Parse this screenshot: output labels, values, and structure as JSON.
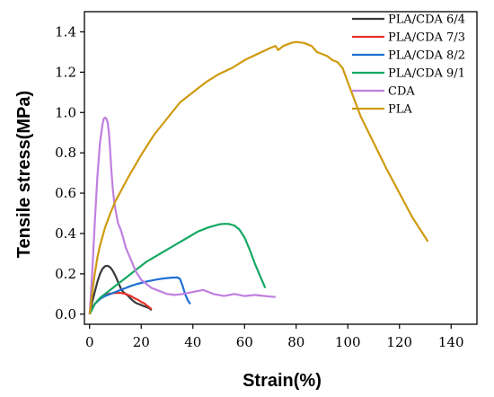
{
  "chart_data": {
    "type": "line",
    "title": "",
    "xlabel": "Strain(%)",
    "ylabel": "Tensile stress(MPa)",
    "xlim": [
      -2,
      150
    ],
    "ylim": [
      -0.05,
      1.5
    ],
    "xticks": [
      0,
      20,
      40,
      60,
      80,
      100,
      120,
      140
    ],
    "yticks": [
      0.0,
      0.2,
      0.4,
      0.6,
      0.8,
      1.0,
      1.2,
      1.4
    ],
    "ytick_labels": [
      "0.0",
      "0.2",
      "0.4",
      "0.6",
      "0.8",
      "1.0",
      "1.2",
      "1.4"
    ],
    "grid": false,
    "legend_position": "top-right",
    "series": [
      {
        "name": "PLA/CDA 6/4",
        "color": "#3a3a3a",
        "x": [
          0,
          1,
          2,
          3,
          4,
          5,
          6,
          7,
          8,
          9,
          10,
          11,
          12,
          13,
          14,
          15,
          16,
          17,
          18,
          19,
          20,
          21,
          22,
          23,
          24
        ],
        "y": [
          0,
          0.06,
          0.11,
          0.16,
          0.2,
          0.225,
          0.238,
          0.24,
          0.232,
          0.215,
          0.19,
          0.16,
          0.13,
          0.11,
          0.1,
          0.09,
          0.075,
          0.065,
          0.055,
          0.05,
          0.045,
          0.04,
          0.035,
          0.03,
          0.02
        ]
      },
      {
        "name": "PLA/CDA 7/3",
        "color": "#e8322a",
        "x": [
          0,
          1,
          2,
          3,
          4,
          5,
          6,
          7,
          8,
          9,
          10,
          11,
          12,
          13,
          14,
          15,
          16,
          17,
          18,
          19,
          20,
          21,
          22,
          23,
          24
        ],
        "y": [
          0,
          0.03,
          0.05,
          0.065,
          0.078,
          0.088,
          0.095,
          0.1,
          0.102,
          0.104,
          0.105,
          0.106,
          0.105,
          0.103,
          0.1,
          0.095,
          0.09,
          0.082,
          0.075,
          0.07,
          0.06,
          0.055,
          0.045,
          0.035,
          0.025
        ]
      },
      {
        "name": "PLA/CDA 8/2",
        "color": "#1f6fd1",
        "x": [
          0,
          2,
          4,
          6,
          8,
          10,
          12,
          14,
          16,
          18,
          20,
          22,
          24,
          26,
          28,
          30,
          32,
          34,
          35,
          36,
          37,
          38,
          39
        ],
        "y": [
          0,
          0.05,
          0.075,
          0.09,
          0.1,
          0.11,
          0.12,
          0.13,
          0.14,
          0.148,
          0.155,
          0.162,
          0.167,
          0.172,
          0.176,
          0.179,
          0.181,
          0.182,
          0.175,
          0.14,
          0.1,
          0.07,
          0.05
        ]
      },
      {
        "name": "PLA/CDA 9/1",
        "color": "#15a864",
        "x": [
          0,
          2,
          4,
          6,
          8,
          10,
          14,
          18,
          22,
          26,
          30,
          34,
          38,
          42,
          46,
          50,
          52,
          54,
          56,
          58,
          60,
          62,
          64,
          66,
          68
        ],
        "y": [
          0,
          0.05,
          0.08,
          0.1,
          0.12,
          0.14,
          0.18,
          0.22,
          0.26,
          0.29,
          0.32,
          0.35,
          0.38,
          0.41,
          0.43,
          0.445,
          0.448,
          0.447,
          0.44,
          0.42,
          0.38,
          0.32,
          0.25,
          0.19,
          0.13
        ]
      },
      {
        "name": "CDA",
        "color": "#c07fe0",
        "x": [
          0,
          1,
          2,
          3,
          4,
          5,
          5.5,
          6,
          6.5,
          7,
          7.5,
          8,
          8.5,
          9,
          9.5,
          10,
          11,
          12,
          13,
          14,
          15,
          16,
          17,
          18,
          19,
          20,
          22,
          24,
          26,
          28,
          30,
          33,
          36,
          40,
          44,
          48,
          52,
          56,
          60,
          64,
          68,
          72
        ],
        "y": [
          0,
          0.2,
          0.45,
          0.68,
          0.85,
          0.94,
          0.97,
          0.975,
          0.97,
          0.95,
          0.9,
          0.8,
          0.7,
          0.62,
          0.56,
          0.52,
          0.45,
          0.42,
          0.38,
          0.33,
          0.3,
          0.27,
          0.24,
          0.21,
          0.19,
          0.17,
          0.15,
          0.13,
          0.12,
          0.11,
          0.1,
          0.095,
          0.1,
          0.11,
          0.12,
          0.1,
          0.09,
          0.1,
          0.09,
          0.095,
          0.09,
          0.085
        ]
      },
      {
        "name": "PLA",
        "color": "#cf9a10",
        "x": [
          0,
          1,
          2,
          3,
          4,
          6,
          8,
          10,
          15,
          20,
          25,
          30,
          35,
          40,
          45,
          50,
          55,
          60,
          65,
          70,
          72,
          73,
          75,
          78,
          80,
          83,
          86,
          88,
          90,
          92,
          94,
          96,
          98,
          100,
          105,
          110,
          115,
          120,
          125,
          128,
          131
        ],
        "y": [
          0,
          0.1,
          0.2,
          0.28,
          0.34,
          0.43,
          0.5,
          0.56,
          0.68,
          0.79,
          0.89,
          0.97,
          1.05,
          1.1,
          1.15,
          1.19,
          1.22,
          1.26,
          1.29,
          1.32,
          1.33,
          1.31,
          1.33,
          1.345,
          1.35,
          1.345,
          1.33,
          1.3,
          1.29,
          1.28,
          1.26,
          1.25,
          1.22,
          1.15,
          0.98,
          0.85,
          0.72,
          0.6,
          0.48,
          0.42,
          0.36
        ]
      }
    ]
  }
}
